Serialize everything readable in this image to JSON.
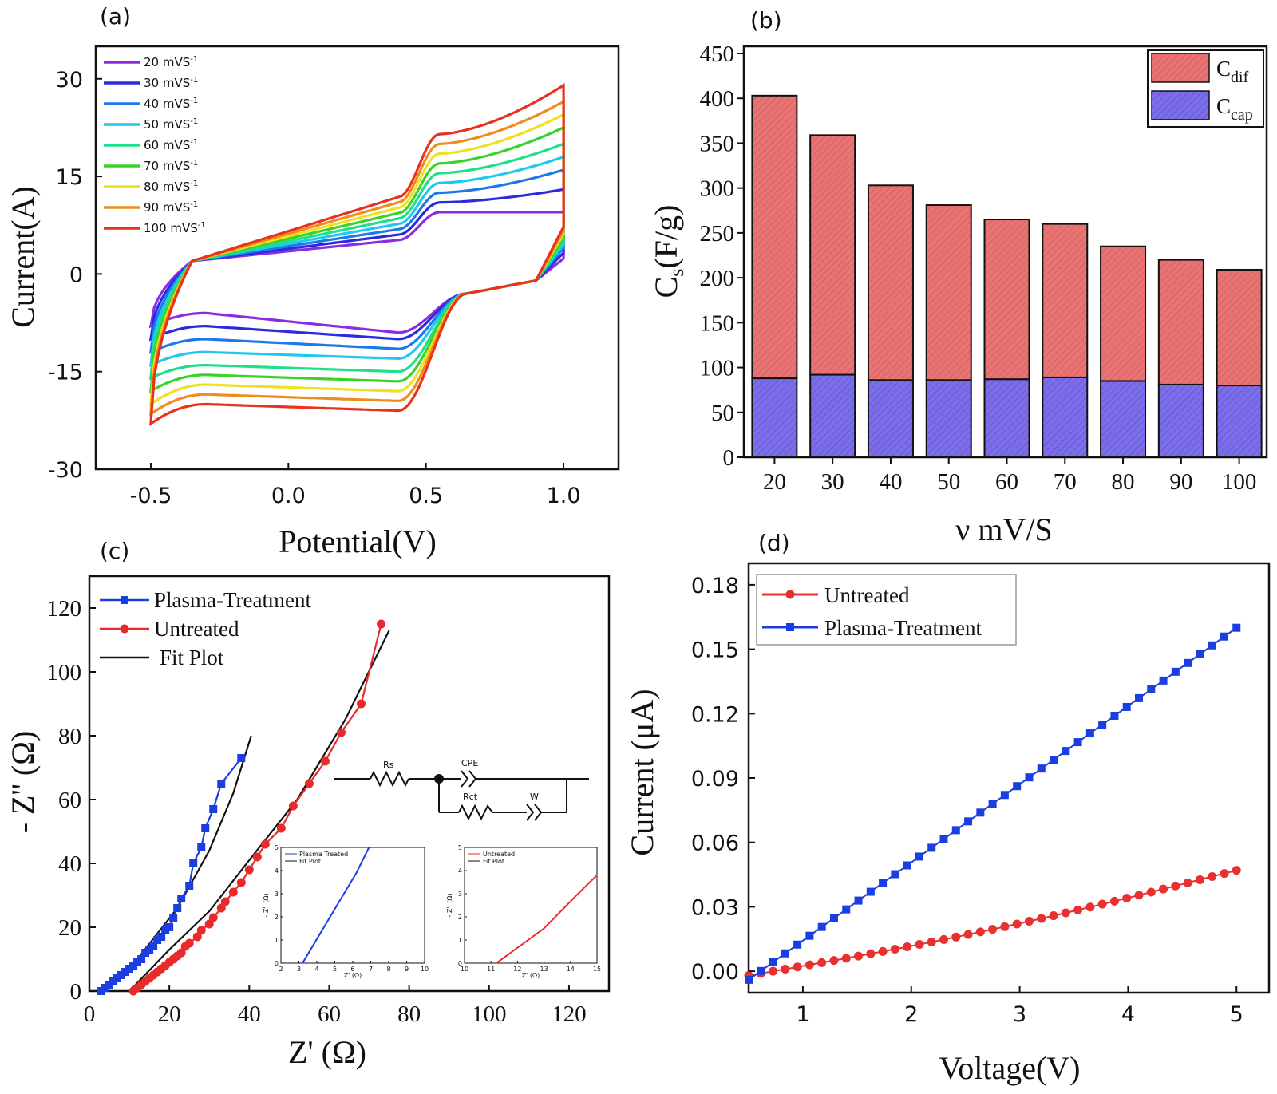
{
  "chart_data": [
    {
      "panel": "(a)",
      "type": "line",
      "xlabel": "Potential(V)",
      "ylabel": "Current(A)",
      "xlim": [
        -0.7,
        1.2
      ],
      "ylim": [
        -30,
        35
      ],
      "xticks": [
        "-0.5",
        "0.0",
        "0.5",
        "1.0"
      ],
      "xtick_values": [
        -0.5,
        0.0,
        0.5,
        1.0
      ],
      "yticks": [
        "30",
        "15",
        "0",
        "-15",
        "-30"
      ],
      "ytick_values": [
        30,
        15,
        0,
        -15,
        -30
      ],
      "series": [
        {
          "name": "20 mVS",
          "sup": "-1",
          "color": "#8b2be2",
          "upper_plateau": 9.5,
          "upper_end": 9.5,
          "lower_plateau": -6,
          "lower_dip": -9,
          "start": -8
        },
        {
          "name": "30 mVS",
          "sup": "-1",
          "color": "#2a2adf",
          "upper_plateau": 11,
          "upper_end": 13,
          "lower_plateau": -8,
          "lower_dip": -10,
          "start": -10
        },
        {
          "name": "40 mVS",
          "sup": "-1",
          "color": "#1e78e6",
          "upper_plateau": 12.5,
          "upper_end": 16,
          "lower_plateau": -10,
          "lower_dip": -11.5,
          "start": -12
        },
        {
          "name": "50 mVS",
          "sup": "-1",
          "color": "#1ec8f0",
          "upper_plateau": 14,
          "upper_end": 18,
          "lower_plateau": -12,
          "lower_dip": -13,
          "start": -14
        },
        {
          "name": "60 mVS",
          "sup": "-1",
          "color": "#1ee08c",
          "upper_plateau": 15.5,
          "upper_end": 20,
          "lower_plateau": -14,
          "lower_dip": -15,
          "start": -16
        },
        {
          "name": "70 mVS",
          "sup": "-1",
          "color": "#3ad22a",
          "upper_plateau": 17,
          "upper_end": 22.5,
          "lower_plateau": -15.5,
          "lower_dip": -16.5,
          "start": -18
        },
        {
          "name": "80 mVS",
          "sup": "-1",
          "color": "#f0e11e",
          "upper_plateau": 18.5,
          "upper_end": 24.5,
          "lower_plateau": -17,
          "lower_dip": -18,
          "start": -20
        },
        {
          "name": "90 mVS",
          "sup": "-1",
          "color": "#f08c1e",
          "upper_plateau": 20,
          "upper_end": 26.5,
          "lower_plateau": -18.5,
          "lower_dip": -19.5,
          "start": -21.5
        },
        {
          "name": "100 mVS",
          "sup": "-1",
          "color": "#e8321e",
          "upper_plateau": 21.5,
          "upper_end": 29,
          "lower_plateau": -20,
          "lower_dip": -21,
          "start": -23
        }
      ]
    },
    {
      "panel": "(b)",
      "type": "bar",
      "stacked": true,
      "xlabel": "ν mV/S",
      "ylabel_main": "C",
      "ylabel_sub": "s",
      "ylabel_rest": "(F/g)",
      "ylim": [
        0,
        450
      ],
      "yticks": [
        "0",
        "50",
        "100",
        "150",
        "200",
        "250",
        "300",
        "350",
        "400",
        "450"
      ],
      "ytick_values": [
        0,
        50,
        100,
        150,
        200,
        250,
        300,
        350,
        400,
        450
      ],
      "categories": [
        "20",
        "30",
        "40",
        "50",
        "60",
        "70",
        "80",
        "90",
        "100"
      ],
      "series": [
        {
          "name": "C",
          "sub": "cap",
          "color": "#7b6ee8",
          "values": [
            88,
            92,
            86,
            86,
            87,
            89,
            85,
            81,
            80
          ]
        },
        {
          "name": "C",
          "sub": "dif",
          "color": "#e87474",
          "values": [
            315,
            267,
            217,
            195,
            178,
            171,
            150,
            139,
            129
          ]
        }
      ],
      "totals": [
        403,
        359,
        303,
        281,
        265,
        260,
        235,
        220,
        209
      ],
      "legend": "top-right"
    },
    {
      "panel": "(c)",
      "type": "scatter",
      "xlabel": "Z' (Ω)",
      "ylabel": "- Z'' (Ω)",
      "xlim": [
        0,
        130
      ],
      "ylim": [
        0,
        130
      ],
      "xticks": [
        "0",
        "20",
        "40",
        "60",
        "80",
        "100",
        "120"
      ],
      "xtick_values": [
        0,
        20,
        40,
        60,
        80,
        100,
        120
      ],
      "yticks": [
        "0",
        "20",
        "40",
        "60",
        "80",
        "100",
        "120"
      ],
      "ytick_values": [
        0,
        20,
        40,
        60,
        80,
        100,
        120
      ],
      "legend": [
        "Plasma-Treatment",
        "Untreated",
        "Fit Plot"
      ],
      "series": [
        {
          "name": "Plasma-Treatment",
          "color": "#1a3ee0",
          "marker": "square",
          "x": [
            3,
            4,
            5,
            6,
            7,
            8,
            9,
            10,
            11,
            12,
            13,
            14,
            15,
            16,
            17,
            18,
            19,
            20,
            21,
            22,
            23,
            25,
            26,
            28,
            29,
            31,
            33,
            38
          ],
          "y": [
            0,
            1,
            2,
            3,
            4,
            5,
            6,
            7,
            8,
            9,
            10,
            12,
            13,
            14,
            16,
            17,
            19,
            20,
            23,
            26,
            29,
            33,
            40,
            45,
            51,
            57,
            65,
            73
          ]
        },
        {
          "name": "Untreated",
          "color": "#e82a2a",
          "marker": "circle",
          "x": [
            11,
            12,
            13,
            14,
            15,
            16,
            17,
            18,
            19,
            20,
            21,
            22,
            23,
            24,
            25,
            27,
            28,
            30,
            31,
            33,
            34,
            36,
            38,
            40,
            42,
            44,
            48,
            51,
            55,
            59,
            63,
            68,
            73
          ],
          "y": [
            0,
            1,
            2,
            3,
            4,
            5,
            6,
            7,
            8,
            9,
            10,
            11,
            12,
            14,
            15,
            17,
            19,
            21,
            23,
            26,
            28,
            31,
            34,
            38,
            42,
            46,
            51,
            58,
            65,
            72,
            81,
            90,
            115
          ]
        },
        {
          "name": "Fit Plot",
          "color": "#111111",
          "type": "line",
          "segments": [
            {
              "x": [
                2.5,
                12,
                22,
                30,
                36,
                40.5
              ],
              "y": [
                0,
                10,
                26,
                44,
                62,
                80
              ]
            },
            {
              "x": [
                10,
                20,
                30,
                40,
                52,
                64,
                75
              ],
              "y": [
                0,
                13,
                25,
                41,
                60,
                85,
                113
              ]
            }
          ]
        }
      ],
      "circuit_labels": [
        "Rs",
        "CPE",
        "Rct",
        "W"
      ],
      "insets": [
        {
          "color": "#1a3ee0",
          "legend": [
            "Plasma Treated",
            "Fit Plot"
          ],
          "xticks": [
            "2",
            "3",
            "4",
            "5",
            "6",
            "7",
            "8",
            "9",
            "10"
          ],
          "xrange": [
            2,
            10
          ],
          "yticks": [
            "0",
            "1",
            "2",
            "3",
            "4",
            "5"
          ],
          "yrange": [
            0,
            5
          ],
          "xlabel": "Z' (Ω)",
          "ylabel": "- Z'' (Ω)",
          "x": [
            3.2,
            4.2,
            5.2,
            6.2,
            6.9
          ],
          "y": [
            0,
            1.3,
            2.6,
            3.9,
            5
          ]
        },
        {
          "color": "#e82a2a",
          "legend": [
            "Untreated",
            "Fit Plot"
          ],
          "xticks": [
            "10",
            "11",
            "12",
            "13",
            "14",
            "15"
          ],
          "xrange": [
            10,
            15
          ],
          "yticks": [
            "0",
            "1",
            "2",
            "3",
            "4",
            "5"
          ],
          "yrange": [
            0,
            5
          ],
          "xlabel": "Z' (Ω)",
          "ylabel": "- Z'' (Ω)",
          "x": [
            11.2,
            11.8,
            12.4,
            13.0,
            13.6,
            14.2,
            15
          ],
          "y": [
            0,
            0.5,
            1.0,
            1.5,
            2.2,
            2.9,
            3.8
          ]
        }
      ]
    },
    {
      "panel": "(d)",
      "type": "scatter",
      "xlabel": "Voltage(V)",
      "ylabel": "Current (μA)",
      "xlim": [
        0.5,
        5.3
      ],
      "ylim": [
        -0.01,
        0.19
      ],
      "xticks": [
        "1",
        "2",
        "3",
        "4",
        "5"
      ],
      "xtick_values": [
        1,
        2,
        3,
        4,
        5
      ],
      "yticks": [
        "0.00",
        "0.03",
        "0.06",
        "0.09",
        "0.12",
        "0.15",
        "0.18"
      ],
      "ytick_values": [
        0.0,
        0.03,
        0.06,
        0.09,
        0.12,
        0.15,
        0.18
      ],
      "legend": [
        "Untreated",
        "Plasma-Treatment"
      ],
      "series": [
        {
          "name": "Untreated",
          "color": "#e83030",
          "marker": "circle",
          "x_start": 0.5,
          "x_end": 5.0,
          "n": 41,
          "y_start": -0.002,
          "y_end": 0.047,
          "curvature": -0.003
        },
        {
          "name": "Plasma-Treatment",
          "color": "#1a3ee0",
          "marker": "square",
          "x_start": 0.5,
          "x_end": 5.0,
          "n": 41,
          "y_start": -0.004,
          "y_end": 0.16,
          "curvature": 0.0
        }
      ]
    }
  ]
}
